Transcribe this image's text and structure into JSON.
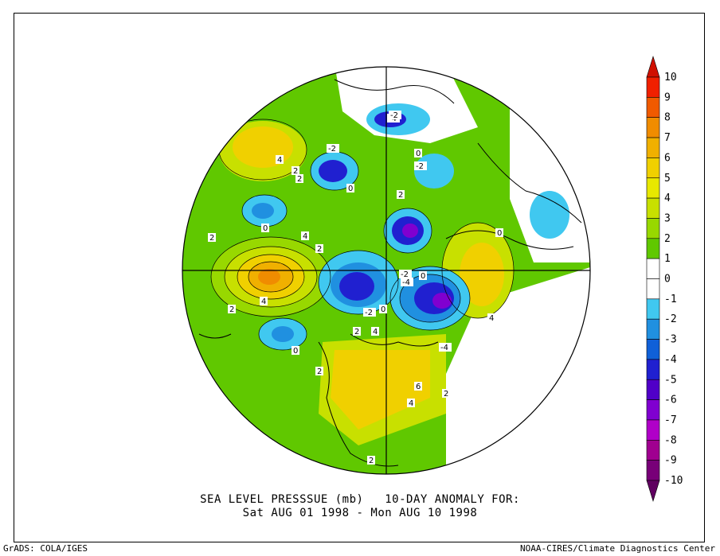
{
  "title": {
    "line1": "SEA LEVEL PRESSSUE (mb)   10-DAY ANOMALY FOR:",
    "line2": "Sat AUG 01 1998 - Mon AUG 10 1998"
  },
  "footer": {
    "left": "GrADS: COLA/IGES",
    "right": "NOAA-CIRES/Climate Diagnostics Center"
  },
  "colorbar": {
    "labels": [
      "10",
      "9",
      "8",
      "7",
      "6",
      "5",
      "4",
      "3",
      "2",
      "1",
      "0",
      "-1",
      "-2",
      "-3",
      "-4",
      "-5",
      "-6",
      "-7",
      "-8",
      "-9",
      "-10"
    ],
    "colors": [
      "#f02000",
      "#f05a00",
      "#f08c00",
      "#f0b000",
      "#f0d000",
      "#e8e800",
      "#c8e000",
      "#98d800",
      "#60c800",
      "#ffffff",
      "#ffffff",
      "#40c8f0",
      "#2090e0",
      "#1060d8",
      "#2020d0",
      "#5000c8",
      "#8000d0",
      "#b000c8",
      "#a00090",
      "#780078"
    ],
    "top_color": "#d01000",
    "bottom_color": "#600060"
  },
  "map": {
    "projection": "north-polar-stereographic",
    "contour_labels": [
      "-4",
      "-2",
      "-2",
      "0",
      "0",
      "2",
      "2",
      "4",
      "4",
      "2",
      "2",
      "-2",
      "-4",
      "0",
      "0",
      "2",
      "4",
      "4",
      "-2",
      "0",
      "2",
      "0",
      "4",
      "2",
      "6",
      "2",
      "4",
      "2",
      "2",
      "-2",
      "0",
      "-4"
    ]
  }
}
